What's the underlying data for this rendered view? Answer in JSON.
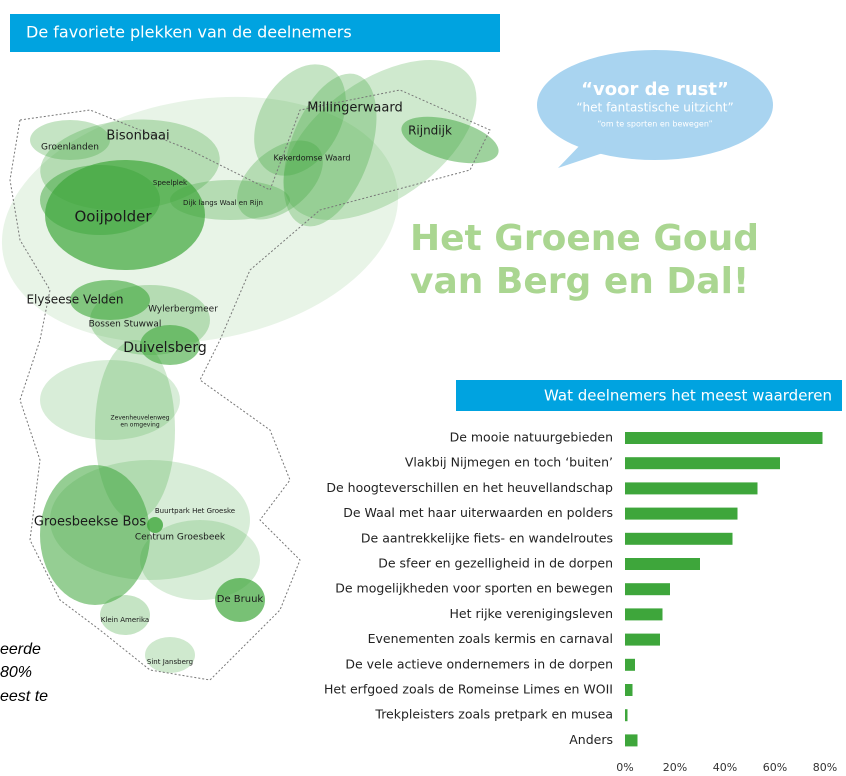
{
  "header": {
    "title": "De favoriete plekken van de deelnemers"
  },
  "map_labels": [
    {
      "text": "Millingerwaard"
    },
    {
      "text": "Rijndijk"
    },
    {
      "text": "Bisonbaai"
    },
    {
      "text": "Groenlanden"
    },
    {
      "text": "Kekerdomse Waard"
    },
    {
      "text": "Speelplek"
    },
    {
      "text": "Dijk langs Waal en Rijn"
    },
    {
      "text": "Ooijpolder"
    },
    {
      "text": "Elyseese Velden"
    },
    {
      "text": "Wylerbergmeer"
    },
    {
      "text": "Bossen Stuwwal"
    },
    {
      "text": "Duivelsberg"
    },
    {
      "text": "Zevenheuvelenweg"
    },
    {
      "text": "en omgeving"
    },
    {
      "text": "Groesbeekse Bos"
    },
    {
      "text": "Buurtpark Het Groeske"
    },
    {
      "text": "Centrum Groesbeek"
    },
    {
      "text": "De Bruuk"
    },
    {
      "text": "Klein Amerika"
    },
    {
      "text": "Sint Jansberg"
    }
  ],
  "bubble": [
    "“voor de rust”",
    "“het fantastische uitzicht”",
    "“om te sporten en bewegen”"
  ],
  "headline": [
    "Het Groene Goud",
    "van Berg en Dal!"
  ],
  "caption_fragment": [
    "eerde",
    "80%",
    "eest te"
  ],
  "chart_data": {
    "type": "hbar",
    "title": "Wat deelnemers het meest waarderen",
    "categories": [
      "De mooie natuurgebieden",
      "Vlakbij Nijmegen en toch ‘buiten’",
      "De hoogteverschillen en het heuvellandschap",
      "De Waal met haar uiterwaarden en polders",
      "De aantrekkelijke fiets- en wandelroutes",
      "De sfeer en gezelligheid in de dorpen",
      "De mogelijkheden voor sporten en bewegen",
      "Het rijke verenigingsleven",
      "Evenementen zoals kermis en carnaval",
      "De vele actieve ondernemers in de dorpen",
      "Het erfgoed zoals de Romeinse Limes en WOII",
      "Trekpleisters zoals pretpark en musea",
      "Anders"
    ],
    "values": [
      79,
      62,
      53,
      45,
      43,
      30,
      18,
      15,
      14,
      4,
      3,
      1,
      5
    ],
    "color": "#3ea63b",
    "xlim": [
      0,
      80
    ],
    "xticks": [
      {
        "value": 0,
        "label": "0%"
      },
      {
        "value": 20,
        "label": "20%"
      },
      {
        "value": 40,
        "label": "40%"
      },
      {
        "value": 60,
        "label": "60%"
      },
      {
        "value": 80,
        "label": "80%"
      }
    ]
  }
}
